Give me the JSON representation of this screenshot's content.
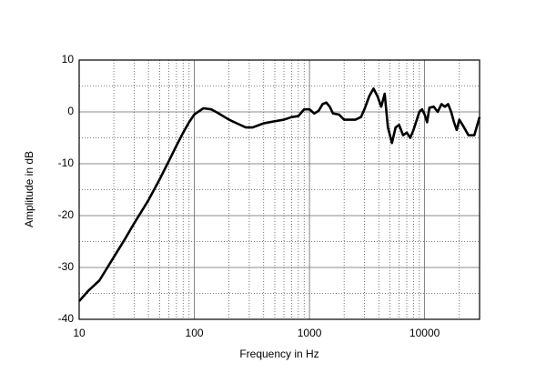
{
  "chart_data": {
    "type": "line",
    "xlabel": "Frequency in Hz",
    "ylabel": "Amplitude in dB",
    "x": [
      10,
      12,
      15,
      20,
      25,
      30,
      40,
      50,
      60,
      70,
      80,
      90,
      100,
      120,
      140,
      160,
      200,
      250,
      280,
      320,
      400,
      500,
      600,
      700,
      800,
      900,
      1000,
      1100,
      1200,
      1300,
      1400,
      1500,
      1600,
      1800,
      2000,
      2500,
      2800,
      3000,
      3300,
      3600,
      3900,
      4200,
      4500,
      4800,
      5200,
      5600,
      6000,
      6500,
      7000,
      7500,
      8000,
      9000,
      9500,
      10000,
      10500,
      11000,
      12000,
      13000,
      14000,
      15000,
      16000,
      17000,
      18000,
      19000,
      20000,
      22000,
      24000,
      27000,
      30000
    ],
    "values": [
      -36.5,
      -34.5,
      -32.5,
      -28,
      -24.5,
      -21.5,
      -17,
      -13,
      -9.5,
      -6.5,
      -4,
      -2,
      -0.5,
      0.7,
      0.5,
      -0.2,
      -1.5,
      -2.5,
      -3,
      -3,
      -2.2,
      -1.8,
      -1.5,
      -1,
      -0.8,
      0.5,
      0.5,
      -0.3,
      0.2,
      1.5,
      1.8,
      1,
      -0.3,
      -0.5,
      -1.5,
      -1.5,
      -1,
      0.5,
      3,
      4.5,
      3,
      1,
      3.5,
      -3,
      -6,
      -3,
      -2.5,
      -4.5,
      -4,
      -5,
      -3.5,
      0,
      0.5,
      -0.5,
      -2,
      0.8,
      1,
      0,
      1.5,
      1,
      1.5,
      0,
      -2,
      -3.5,
      -1.5,
      -3,
      -4.5,
      -4.5,
      -1
    ],
    "color": "#000000",
    "xscale": "log",
    "xlim": [
      10,
      30000
    ],
    "xticks": [
      10,
      100,
      1000,
      10000
    ],
    "xminorticks": [
      20,
      30,
      40,
      50,
      60,
      70,
      80,
      90,
      200,
      300,
      400,
      500,
      600,
      700,
      800,
      900,
      2000,
      3000,
      4000,
      5000,
      6000,
      7000,
      8000,
      9000,
      20000
    ],
    "ylim": [
      -40,
      10
    ],
    "yticks": [
      -40,
      -30,
      -20,
      -10,
      0,
      10
    ],
    "yminorticks": [
      -35,
      -25,
      -15,
      -5,
      5
    ],
    "grid": true
  }
}
